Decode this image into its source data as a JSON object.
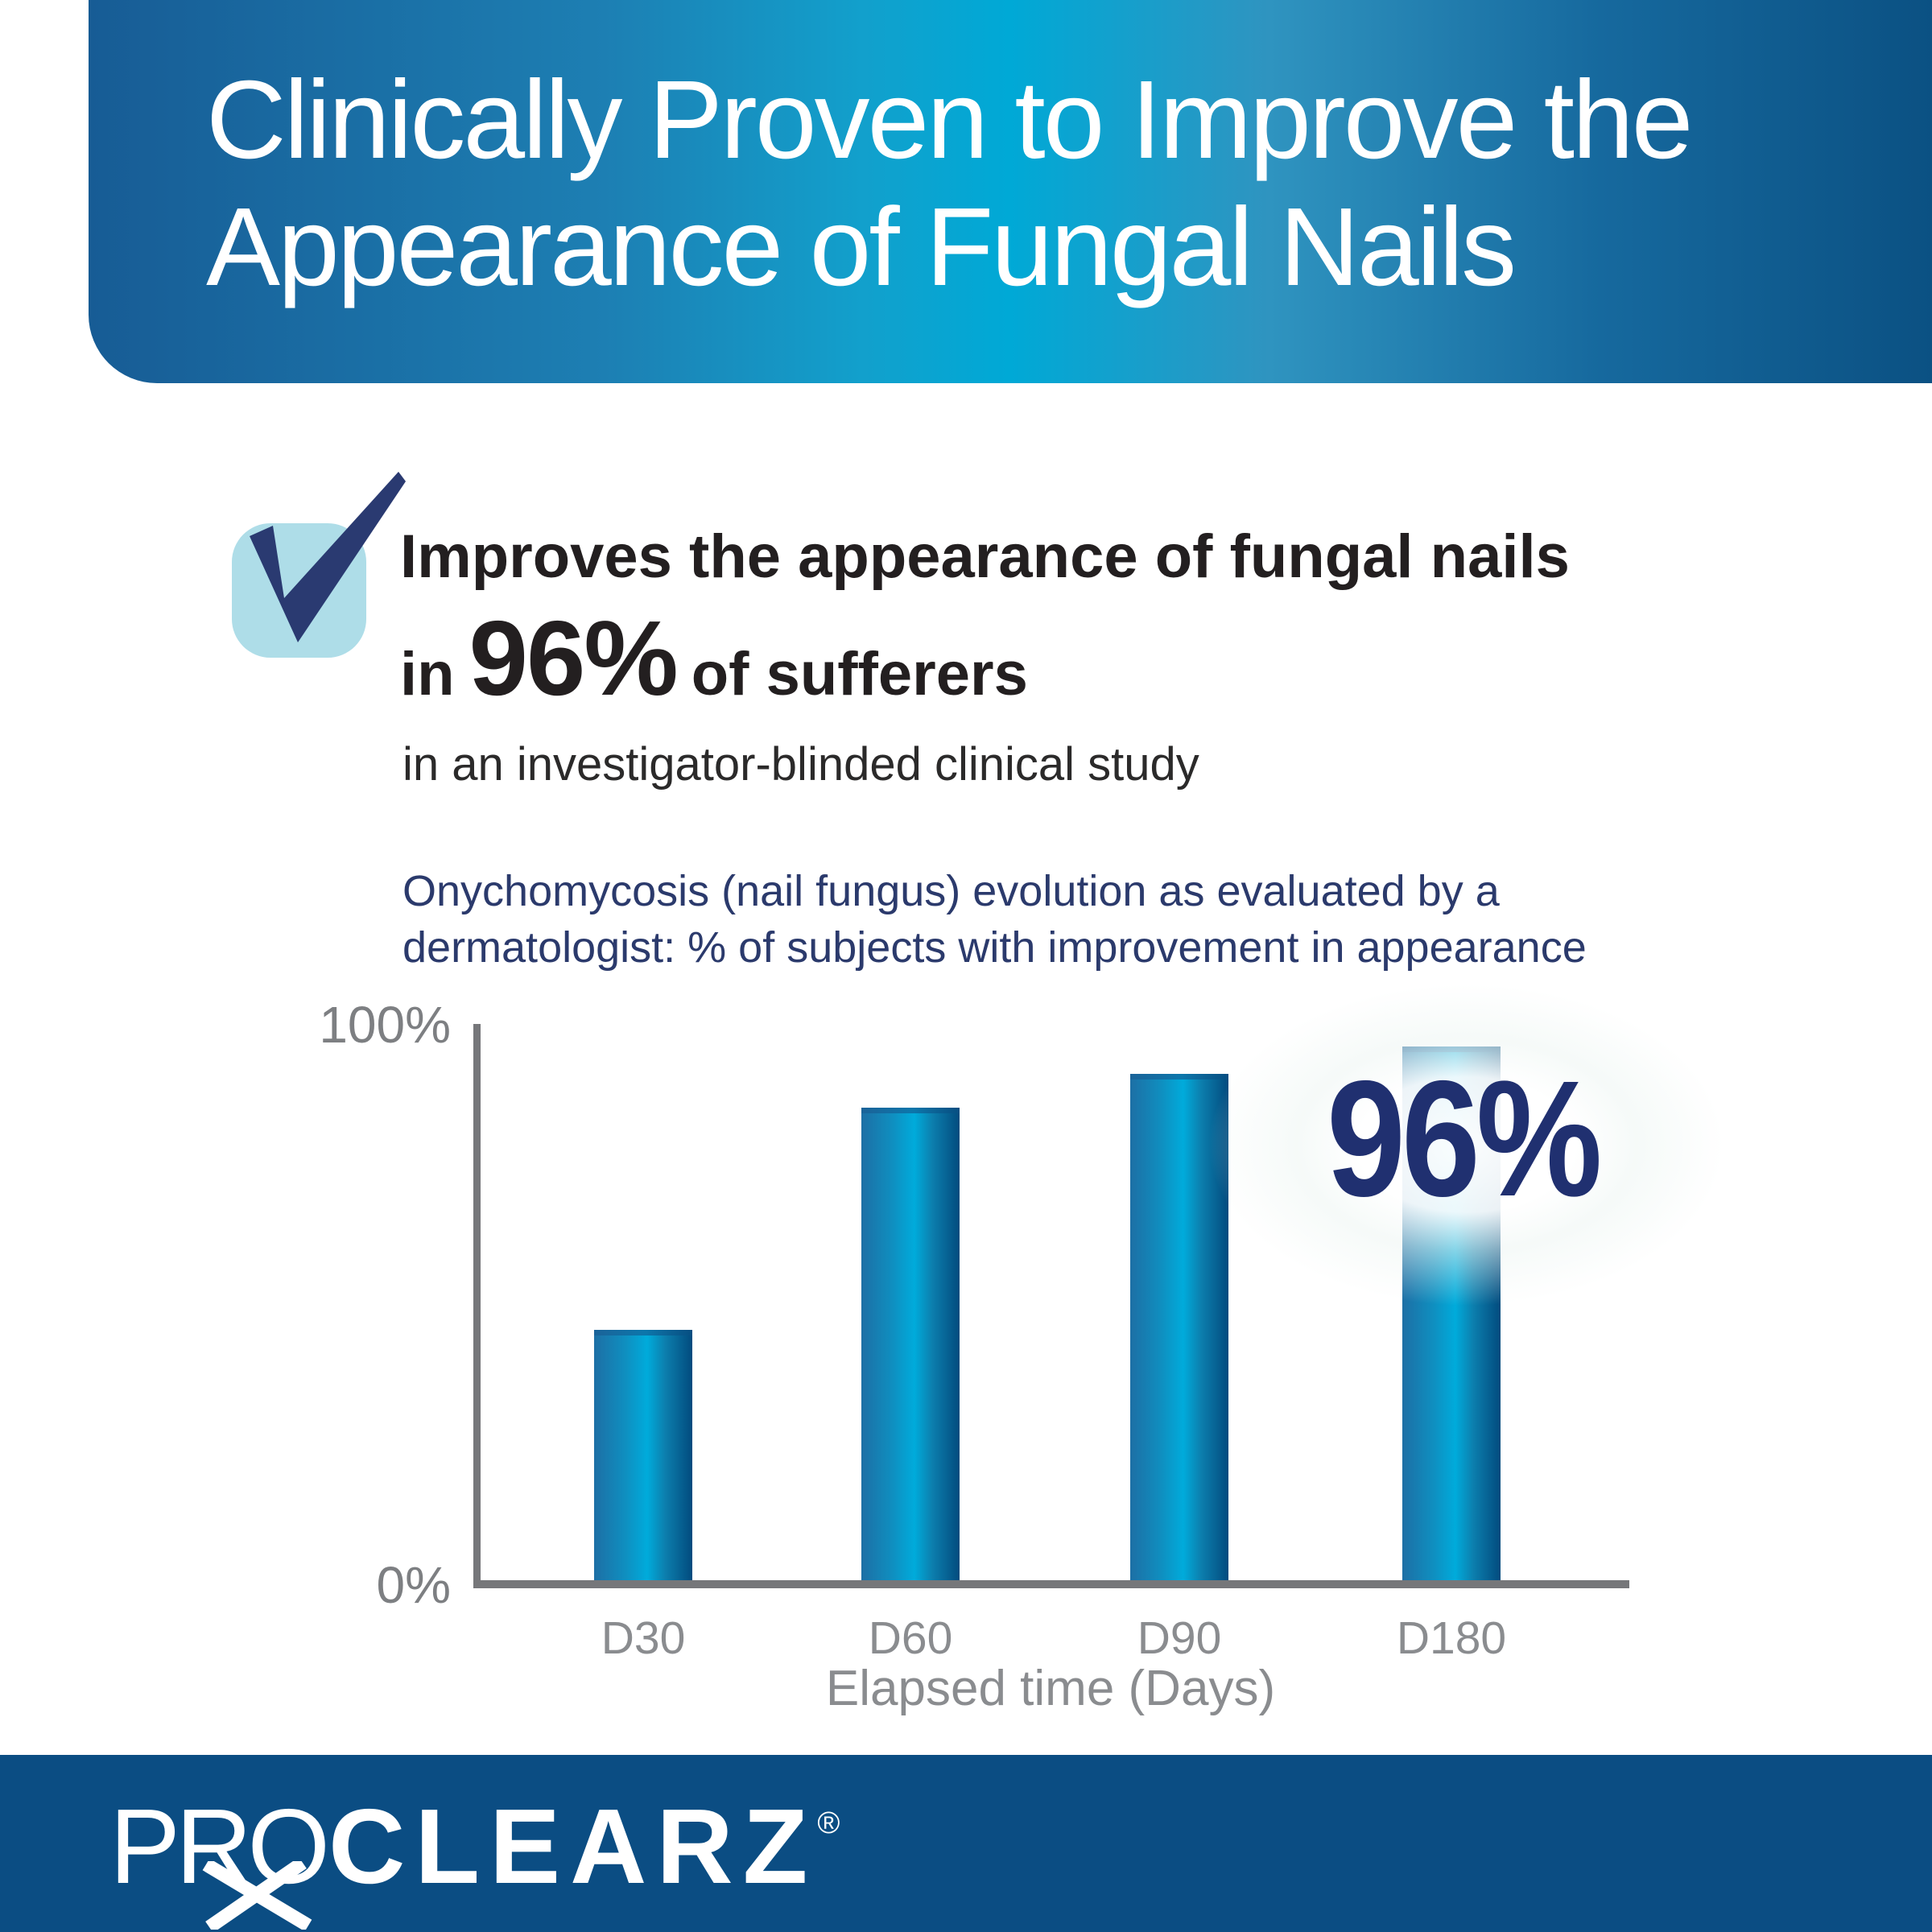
{
  "banner": {
    "title_line1": "Clinically Proven to Improve the",
    "title_line2": "Appearance of Fungal Nails",
    "gradient_colors": [
      "#175c95",
      "#1d7fb3",
      "#00a9d6",
      "#2f94c0",
      "#0b5183"
    ],
    "text_color": "#ffffff"
  },
  "claim": {
    "headline_line1": "Improves the appearance of fungal nails",
    "headline_prefix": "in",
    "headline_stat": "96%",
    "headline_suffix": "of sufferers",
    "subtext": "in an investigator-blinded clinical study",
    "check_icon_box_color": "#aedde8",
    "check_icon_color": "#2a3a71"
  },
  "chart_data": {
    "type": "bar",
    "title_line1": "Onychomycosis (nail fungus) evolution as evaluated by a",
    "title_line2": "dermatologist: % of subjects with improvement in appearance",
    "categories": [
      "D30",
      "D60",
      "D90",
      "D180"
    ],
    "values": [
      45,
      85,
      91,
      96
    ],
    "xlabel": "Elapsed time (Days)",
    "ylabel": "",
    "ylim": [
      0,
      100
    ],
    "ytick_labels": [
      "0%",
      "100%"
    ],
    "grid": false,
    "legend": false,
    "annotation": {
      "text": "96%",
      "category": "D180"
    },
    "bar_gradient": [
      "#1d6fa5",
      "#00abdb",
      "#024b7e"
    ],
    "axis_color": "#76777a",
    "tick_label_color": "#8a8c8f",
    "title_color": "#2b3a6c"
  },
  "footer": {
    "brand_part1": "PRO",
    "brand_part2": "CLEARZ",
    "registered_mark": "®",
    "rx_icon": "rx-cross",
    "background": "#0b4d83"
  }
}
